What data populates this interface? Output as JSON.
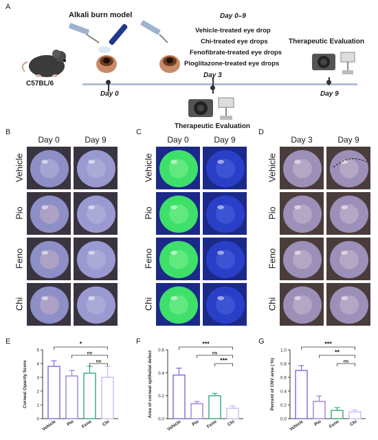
{
  "panel_letters": [
    "A",
    "B",
    "C",
    "D",
    "E",
    "F",
    "G"
  ],
  "timeline": {
    "title_model": "Alkali burn model",
    "mouse_label": "C57BL/6",
    "day0": "Day 0",
    "day3": "Day 3",
    "day9": "Day 9",
    "day_range": "Day 0–9",
    "treatments": [
      "Vehicle-treated eye drop",
      "Chi-treated eye drops",
      "Fenofibrate-treated eye drops",
      "Pioglitazone-treated eye drops"
    ],
    "eval_top": "Therapeutic Evaluation",
    "eval_bottom": "Therapeutic Evaluation"
  },
  "photo_panels": {
    "B": {
      "cols": [
        "Day 0",
        "Day 9"
      ],
      "rows": [
        "Vehicle",
        "Pio",
        "Feno",
        "Chi"
      ]
    },
    "C": {
      "cols": [
        "Day 0",
        "Day 9"
      ],
      "rows": [
        "Vehicle",
        "Pio",
        "Feno",
        "Chi"
      ]
    },
    "D": {
      "cols": [
        "Day 3",
        "Day 9"
      ],
      "rows": [
        "Vehicle",
        "Pio",
        "Feno",
        "Chi"
      ]
    }
  },
  "colors": {
    "vehicle": "#7b68d8",
    "pio": "#9b7fd6",
    "feno": "#2eaa78",
    "chi": "#c9b8ee",
    "timeline": "#aebfd6",
    "fluor_green": "#3ee06a",
    "fluor_blue": "#2a3fc8",
    "eye_purple": "#7a7fb8"
  },
  "chart_data": [
    {
      "type": "bar",
      "panel": "E",
      "categories": [
        "Vehicle",
        "Pio",
        "Feno",
        "Chi"
      ],
      "values": [
        3.8,
        3.1,
        3.3,
        3.0
      ],
      "errors": [
        0.4,
        0.4,
        0.5,
        0.8
      ],
      "ylabel": "Corneal Opacity Score",
      "ylim": [
        0,
        5
      ],
      "yticks": [
        "0",
        "1",
        "2",
        "3",
        "4",
        "5"
      ],
      "significance": [
        {
          "from": "Vehicle",
          "to": "Chi",
          "label": "*"
        },
        {
          "from": "Pio",
          "to": "Chi",
          "label": "ns"
        },
        {
          "from": "Feno",
          "to": "Chi",
          "label": "ns"
        }
      ]
    },
    {
      "type": "bar",
      "panel": "F",
      "categories": [
        "Vehicle",
        "Pio",
        "Feno",
        "Chi"
      ],
      "values": [
        0.38,
        0.13,
        0.2,
        0.09
      ],
      "errors": [
        0.06,
        0.02,
        0.02,
        0.02
      ],
      "ylabel": "Area of corneal epithelial defect",
      "ylim": [
        0,
        0.6
      ],
      "yticks": [
        "0.0",
        "0.2",
        "0.4",
        "0.6"
      ],
      "significance": [
        {
          "from": "Vehicle",
          "to": "Chi",
          "label": "***"
        },
        {
          "from": "Pio",
          "to": "Chi",
          "label": "ns"
        },
        {
          "from": "Feno",
          "to": "Chi",
          "label": "***"
        }
      ]
    },
    {
      "type": "bar",
      "panel": "G",
      "categories": [
        "Vehicle",
        "Pio",
        "Feno",
        "Chi"
      ],
      "values": [
        0.7,
        0.25,
        0.12,
        0.1
      ],
      "errors": [
        0.07,
        0.08,
        0.04,
        0.03
      ],
      "ylabel": "Percent of CNV area ( %)",
      "ylim": [
        0,
        1.0
      ],
      "yticks": [
        "0.0",
        "0.2",
        "0.4",
        "0.6",
        "0.8",
        "1.0"
      ],
      "significance": [
        {
          "from": "Vehicle",
          "to": "Chi",
          "label": "***"
        },
        {
          "from": "Pio",
          "to": "Chi",
          "label": "**"
        },
        {
          "from": "Feno",
          "to": "Chi",
          "label": "ns"
        }
      ]
    }
  ]
}
